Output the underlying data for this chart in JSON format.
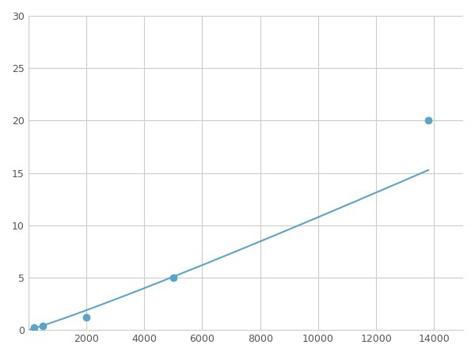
{
  "x_points": [
    200,
    500,
    2000,
    5000,
    13800
  ],
  "y_points": [
    0.2,
    0.4,
    1.2,
    5.0,
    20.0
  ],
  "line_color": "#5ba3c9",
  "marker_color": "#5ba3c9",
  "marker_size": 6,
  "line_width": 1.5,
  "xlim": [
    0,
    15000
  ],
  "ylim": [
    0,
    30
  ],
  "xticks": [
    0,
    2000,
    4000,
    6000,
    8000,
    10000,
    12000,
    14000
  ],
  "xticklabels": [
    "",
    "2000",
    "4000",
    "6000",
    "8000",
    "10000",
    "12000",
    "14000"
  ],
  "yticks": [
    0,
    5,
    10,
    15,
    20,
    25,
    30
  ],
  "grid_color": "#cccccc",
  "grid_linewidth": 0.8,
  "background_color": "#ffffff",
  "figsize": [
    6.0,
    4.5
  ],
  "dpi": 100
}
